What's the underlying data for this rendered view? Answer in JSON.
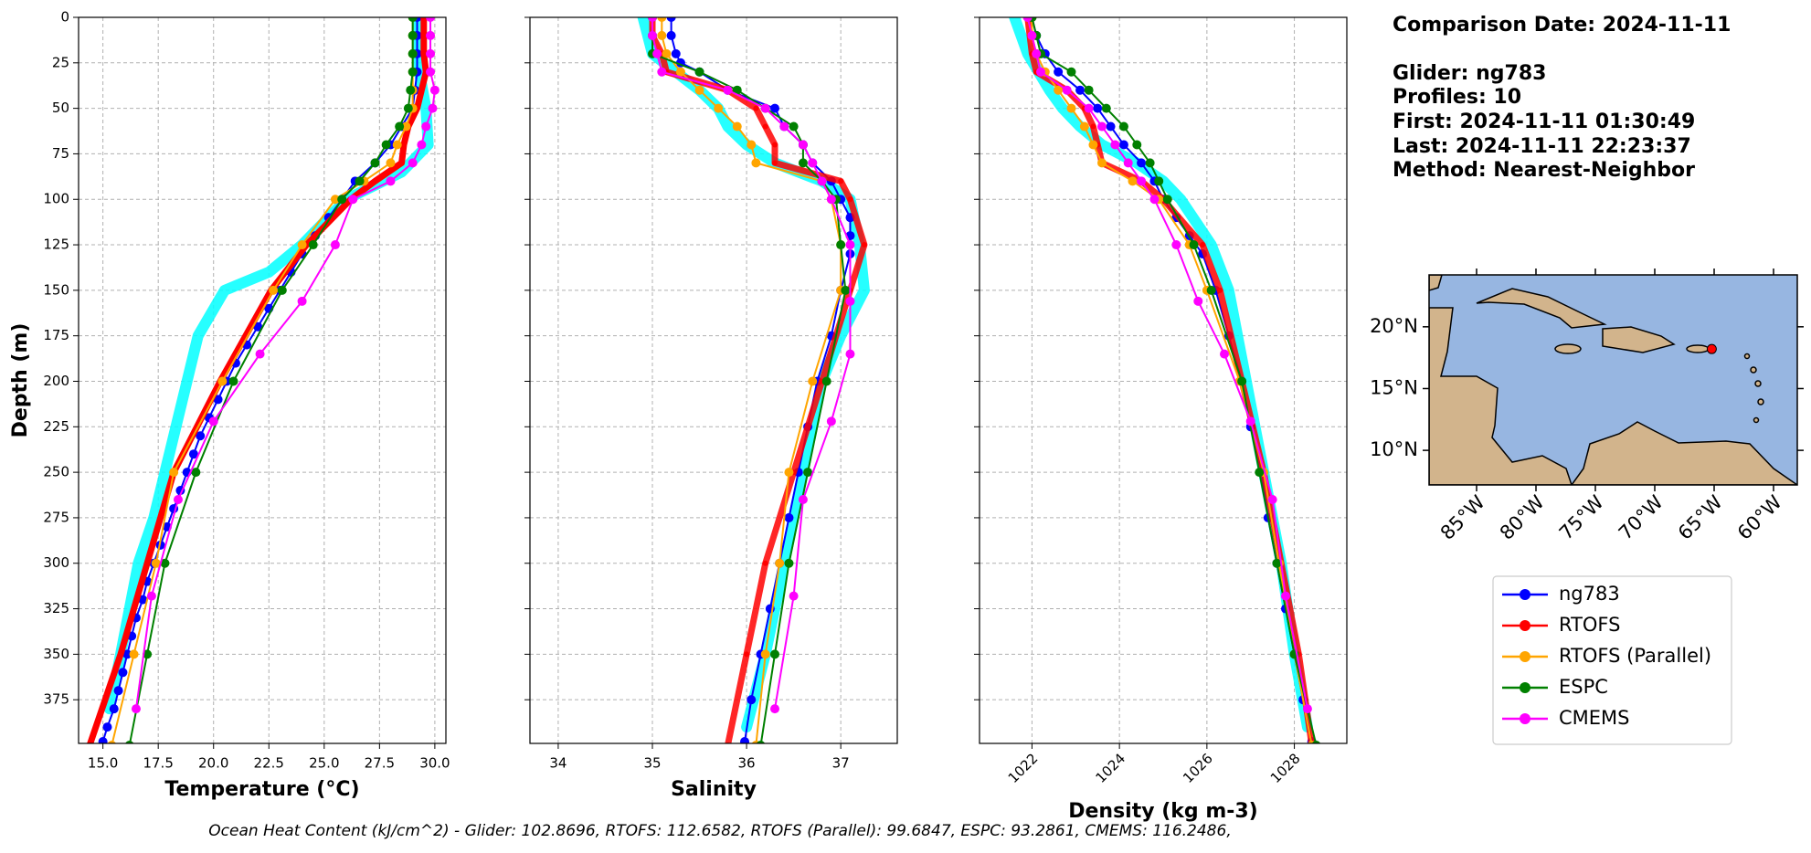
{
  "info": [
    "Comparison Date: 2024-11-11",
    "Glider: ng783",
    "Profiles: 10",
    "First: 2024-11-11 01:30:49",
    "Last: 2024-11-11 22:23:37",
    "Method: Nearest-Neighbor"
  ],
  "footer": "Ocean Heat Content (kJ/cm^2) - Glider: 102.8696,  RTOFS: 112.6582,  RTOFS (Parallel): 99.6847,  ESPC: 93.2861,  CMEMS: 116.2486,",
  "chart_data": [
    {
      "type": "line",
      "xlabel": "Temperature (°C)",
      "ylabel": "Depth (m)",
      "grid": true,
      "legend": true,
      "y_inverted": true,
      "show_ytick_labels": true,
      "xlim": [
        13.9,
        30.5
      ],
      "xticks": [
        {
          "value": 15,
          "label": "15.0"
        },
        17.5,
        {
          "value": 20,
          "label": "20.0"
        },
        22.5,
        {
          "value": 25,
          "label": "25.0"
        },
        27.5,
        {
          "value": 30,
          "label": "30.0"
        }
      ],
      "ylim": [
        0,
        399
      ],
      "yticks": [
        0,
        25,
        50,
        75,
        100,
        125,
        150,
        175,
        200,
        225,
        250,
        275,
        300,
        325,
        350,
        375
      ],
      "series": [
        {
          "color": "#00ffff",
          "linewidth": 12,
          "markersize": 0,
          "depth": [
            0,
            30,
            50,
            70,
            85,
            100,
            125,
            140,
            150,
            175,
            200,
            225,
            250,
            275,
            300,
            350,
            380
          ],
          "values": [
            29.2,
            29.3,
            29.6,
            29.7,
            28.5,
            26.0,
            24.0,
            22.5,
            20.5,
            19.3,
            18.8,
            18.3,
            17.8,
            17.3,
            16.6,
            15.8,
            15.3
          ]
        },
        {
          "name": "ng783",
          "color": "#0000ff",
          "linewidth": 2,
          "markersize": 5,
          "depth": [
            0,
            10,
            20,
            30,
            40,
            50,
            60,
            70,
            80,
            90,
            100,
            110,
            120,
            130,
            140,
            150,
            160,
            170,
            180,
            190,
            200,
            210,
            220,
            230,
            240,
            250,
            260,
            270,
            280,
            290,
            300,
            310,
            320,
            330,
            340,
            350,
            360,
            370,
            380,
            390,
            398
          ],
          "values": [
            29.2,
            29.2,
            29.2,
            29.2,
            29.1,
            29.0,
            28.5,
            28.0,
            27.3,
            26.4,
            25.8,
            25.2,
            24.6,
            24.0,
            23.5,
            23.0,
            22.5,
            22.0,
            21.5,
            21.0,
            20.6,
            20.2,
            19.8,
            19.4,
            19.1,
            18.8,
            18.5,
            18.2,
            17.9,
            17.6,
            17.3,
            17.0,
            16.8,
            16.5,
            16.3,
            16.1,
            15.9,
            15.7,
            15.5,
            15.2,
            15.0
          ]
        },
        {
          "name": "RTOFS",
          "color": "#ff0000",
          "linewidth": 7,
          "markersize": 3,
          "depth": [
            0,
            10,
            20,
            30,
            40,
            50,
            60,
            70,
            80,
            90,
            100,
            125,
            150,
            200,
            250,
            300,
            350,
            400
          ],
          "values": [
            29.5,
            29.5,
            29.5,
            29.6,
            29.4,
            29.2,
            28.8,
            28.6,
            28.5,
            27.3,
            26.2,
            24.2,
            22.6,
            20.3,
            18.2,
            17.0,
            15.8,
            14.4
          ]
        },
        {
          "name": "RTOFS (Parallel)",
          "color": "#ffa500",
          "linewidth": 2,
          "markersize": 5,
          "depth": [
            0,
            10,
            20,
            30,
            40,
            50,
            60,
            70,
            80,
            90,
            100,
            125,
            150,
            200,
            250,
            300,
            350,
            400
          ],
          "values": [
            29.0,
            29.0,
            29.0,
            29.0,
            29.0,
            29.0,
            28.7,
            28.3,
            28.0,
            26.8,
            25.5,
            24.0,
            22.7,
            20.4,
            18.2,
            17.4,
            16.4,
            15.4
          ]
        },
        {
          "name": "ESPC",
          "color": "#008000",
          "linewidth": 2,
          "markersize": 5,
          "depth": [
            0,
            10,
            20,
            30,
            40,
            50,
            60,
            70,
            80,
            90,
            100,
            125,
            150,
            200,
            250,
            300,
            350,
            400
          ],
          "values": [
            29.0,
            29.0,
            29.0,
            29.0,
            28.9,
            28.8,
            28.4,
            27.8,
            27.3,
            26.6,
            25.8,
            24.5,
            23.1,
            20.9,
            19.2,
            17.8,
            17.0,
            16.2
          ]
        },
        {
          "name": "CMEMS",
          "color": "#ff00ff",
          "linewidth": 2,
          "markersize": 5,
          "depth": [
            0,
            10,
            20,
            30,
            40,
            50,
            60,
            70,
            80,
            90,
            100,
            125,
            156,
            185,
            222,
            265,
            318,
            380
          ],
          "values": [
            29.8,
            29.8,
            29.8,
            29.8,
            30.0,
            29.9,
            29.6,
            29.4,
            29.0,
            28.0,
            26.3,
            25.5,
            24.0,
            22.1,
            20.0,
            18.4,
            17.2,
            16.5
          ]
        }
      ]
    },
    {
      "type": "line",
      "xlabel": "Salinity",
      "grid": true,
      "y_inverted": true,
      "show_ytick_labels": false,
      "xlim": [
        33.7,
        37.6
      ],
      "xticks": [
        34,
        35,
        36,
        37
      ],
      "ylim": [
        0,
        399
      ],
      "yticks": [
        0,
        25,
        50,
        75,
        100,
        125,
        150,
        175,
        200,
        225,
        250,
        275,
        300,
        325,
        350,
        375
      ],
      "series": [
        {
          "color": "#00ffff",
          "linewidth": 12,
          "markersize": 0,
          "depth": [
            0,
            20,
            40,
            50,
            60,
            70,
            80,
            90,
            100,
            125,
            150,
            175,
            200,
            250,
            300,
            350,
            390
          ],
          "values": [
            34.9,
            35.0,
            35.5,
            35.7,
            35.8,
            36.0,
            36.3,
            36.8,
            37.1,
            37.2,
            37.25,
            37.0,
            36.8,
            36.6,
            36.4,
            36.2,
            36.0
          ]
        },
        {
          "color": "#0000ff",
          "linewidth": 2,
          "markersize": 5,
          "depth": [
            0,
            10,
            20,
            25,
            30,
            40,
            50,
            60,
            70,
            80,
            90,
            100,
            110,
            120,
            130,
            150,
            175,
            200,
            225,
            250,
            275,
            300,
            325,
            350,
            375,
            398
          ],
          "values": [
            35.2,
            35.2,
            35.25,
            35.3,
            35.5,
            35.8,
            36.3,
            36.4,
            36.6,
            36.7,
            36.9,
            37.0,
            37.1,
            37.1,
            37.1,
            37.0,
            36.9,
            36.75,
            36.65,
            36.55,
            36.45,
            36.35,
            36.25,
            36.15,
            36.05,
            35.98
          ]
        },
        {
          "color": "#ff0000",
          "linewidth": 7,
          "markersize": 3,
          "depth": [
            0,
            10,
            20,
            30,
            40,
            50,
            60,
            70,
            80,
            90,
            100,
            125,
            150,
            200,
            250,
            300,
            350,
            400
          ],
          "values": [
            35.0,
            35.0,
            35.1,
            35.15,
            35.8,
            36.1,
            36.2,
            36.3,
            36.3,
            37.0,
            37.1,
            37.25,
            37.1,
            36.8,
            36.5,
            36.2,
            36.0,
            35.8
          ]
        },
        {
          "color": "#ffa500",
          "linewidth": 2,
          "markersize": 5,
          "depth": [
            0,
            10,
            20,
            30,
            40,
            50,
            60,
            70,
            80,
            90,
            100,
            125,
            150,
            200,
            250,
            300,
            350,
            400
          ],
          "values": [
            35.1,
            35.1,
            35.15,
            35.3,
            35.5,
            35.7,
            35.9,
            36.05,
            36.1,
            36.8,
            36.9,
            37.0,
            37.0,
            36.7,
            36.45,
            36.35,
            36.2,
            36.1
          ]
        },
        {
          "color": "#008000",
          "linewidth": 2,
          "markersize": 5,
          "depth": [
            0,
            10,
            20,
            30,
            40,
            50,
            60,
            70,
            80,
            90,
            100,
            125,
            150,
            200,
            250,
            300,
            350,
            400
          ],
          "values": [
            35.0,
            35.0,
            35.0,
            35.5,
            35.9,
            36.2,
            36.5,
            36.6,
            36.6,
            36.8,
            36.95,
            37.0,
            37.05,
            36.85,
            36.65,
            36.45,
            36.3,
            36.15
          ]
        },
        {
          "color": "#ff00ff",
          "linewidth": 2,
          "markersize": 5,
          "depth": [
            0,
            10,
            20,
            30,
            40,
            50,
            60,
            70,
            80,
            90,
            100,
            125,
            156,
            185,
            222,
            265,
            318,
            380
          ],
          "values": [
            35.0,
            35.0,
            35.05,
            35.1,
            35.8,
            36.2,
            36.4,
            36.6,
            36.7,
            36.8,
            36.9,
            37.1,
            37.1,
            37.1,
            36.9,
            36.6,
            36.5,
            36.3
          ]
        }
      ]
    },
    {
      "type": "line",
      "xlabel": "Density (kg m-3)",
      "grid": true,
      "y_inverted": true,
      "show_ytick_labels": false,
      "xtick_rotation": 45,
      "xlim": [
        1020.8,
        1029.2
      ],
      "xticks": [
        1022,
        1024,
        1026,
        1028
      ],
      "ylim": [
        0,
        399
      ],
      "yticks": [
        0,
        25,
        50,
        75,
        100,
        125,
        150,
        175,
        200,
        225,
        250,
        275,
        300,
        325,
        350,
        375
      ],
      "series": [
        {
          "color": "#00ffff",
          "linewidth": 12,
          "markersize": 0,
          "depth": [
            0,
            20,
            40,
            50,
            60,
            70,
            80,
            90,
            100,
            125,
            150,
            200,
            250,
            300,
            350,
            390
          ],
          "values": [
            1021.6,
            1021.9,
            1022.4,
            1022.7,
            1023.1,
            1023.6,
            1024.4,
            1025.0,
            1025.4,
            1026.1,
            1026.5,
            1026.9,
            1027.3,
            1027.7,
            1028.0,
            1028.3
          ]
        },
        {
          "color": "#0000ff",
          "linewidth": 2,
          "markersize": 5,
          "depth": [
            0,
            10,
            20,
            30,
            40,
            50,
            60,
            70,
            80,
            90,
            100,
            110,
            120,
            130,
            150,
            175,
            200,
            225,
            250,
            275,
            300,
            325,
            350,
            375,
            398
          ],
          "values": [
            1022.0,
            1022.1,
            1022.3,
            1022.6,
            1023.1,
            1023.5,
            1023.8,
            1024.1,
            1024.5,
            1024.8,
            1025.0,
            1025.3,
            1025.6,
            1025.9,
            1026.2,
            1026.5,
            1026.8,
            1027.0,
            1027.25,
            1027.4,
            1027.6,
            1027.8,
            1028.0,
            1028.2,
            1028.4
          ]
        },
        {
          "color": "#ff0000",
          "linewidth": 7,
          "markersize": 3,
          "depth": [
            0,
            10,
            20,
            30,
            40,
            50,
            60,
            70,
            80,
            90,
            100,
            125,
            150,
            200,
            250,
            300,
            350,
            400
          ],
          "values": [
            1021.9,
            1021.95,
            1022.0,
            1022.1,
            1022.8,
            1023.2,
            1023.4,
            1023.5,
            1023.6,
            1024.5,
            1025.0,
            1025.9,
            1026.3,
            1026.8,
            1027.3,
            1027.7,
            1028.1,
            1028.4
          ]
        },
        {
          "color": "#ffa500",
          "linewidth": 2,
          "markersize": 5,
          "depth": [
            0,
            10,
            20,
            30,
            40,
            50,
            60,
            70,
            80,
            90,
            100,
            125,
            150,
            200,
            250,
            300,
            350,
            400
          ],
          "values": [
            1022.0,
            1022.0,
            1022.1,
            1022.3,
            1022.6,
            1022.9,
            1023.2,
            1023.4,
            1023.6,
            1024.3,
            1024.9,
            1025.6,
            1026.0,
            1026.75,
            1027.3,
            1027.65,
            1028.0,
            1028.4
          ]
        },
        {
          "color": "#008000",
          "linewidth": 2,
          "markersize": 5,
          "depth": [
            0,
            10,
            20,
            30,
            40,
            50,
            60,
            70,
            80,
            90,
            100,
            125,
            150,
            200,
            250,
            300,
            350,
            400
          ],
          "values": [
            1022.0,
            1022.1,
            1022.2,
            1022.9,
            1023.3,
            1023.7,
            1024.1,
            1024.4,
            1024.7,
            1024.9,
            1025.1,
            1025.7,
            1026.1,
            1026.8,
            1027.2,
            1027.6,
            1028.0,
            1028.5
          ]
        },
        {
          "color": "#ff00ff",
          "linewidth": 2,
          "markersize": 5,
          "depth": [
            0,
            10,
            20,
            30,
            40,
            50,
            60,
            70,
            80,
            90,
            100,
            125,
            156,
            185,
            222,
            265,
            318,
            380
          ],
          "values": [
            1021.9,
            1022.0,
            1022.1,
            1022.2,
            1022.8,
            1023.3,
            1023.6,
            1023.9,
            1024.2,
            1024.5,
            1024.8,
            1025.3,
            1025.8,
            1026.4,
            1027.0,
            1027.5,
            1027.8,
            1028.3
          ]
        }
      ]
    },
    {
      "type": "map",
      "xlim": [
        -89,
        -58
      ],
      "ylim": [
        7.2,
        24.2
      ],
      "xticks": [
        {
          "value": -85,
          "label": "85°W"
        },
        {
          "value": -80,
          "label": "80°W"
        },
        {
          "value": -75,
          "label": "75°W"
        },
        {
          "value": -70,
          "label": "70°W"
        },
        {
          "value": -65,
          "label": "65°W"
        },
        {
          "value": -60,
          "label": "60°W"
        }
      ],
      "yticks": [
        {
          "value": 10,
          "label": "10°N"
        },
        {
          "value": 15,
          "label": "15°N"
        },
        {
          "value": 20,
          "label": "20°N"
        }
      ],
      "series": [
        {
          "color": "#ff0000",
          "lon": [
            -65.2
          ],
          "lat": [
            18.2
          ]
        }
      ]
    }
  ]
}
